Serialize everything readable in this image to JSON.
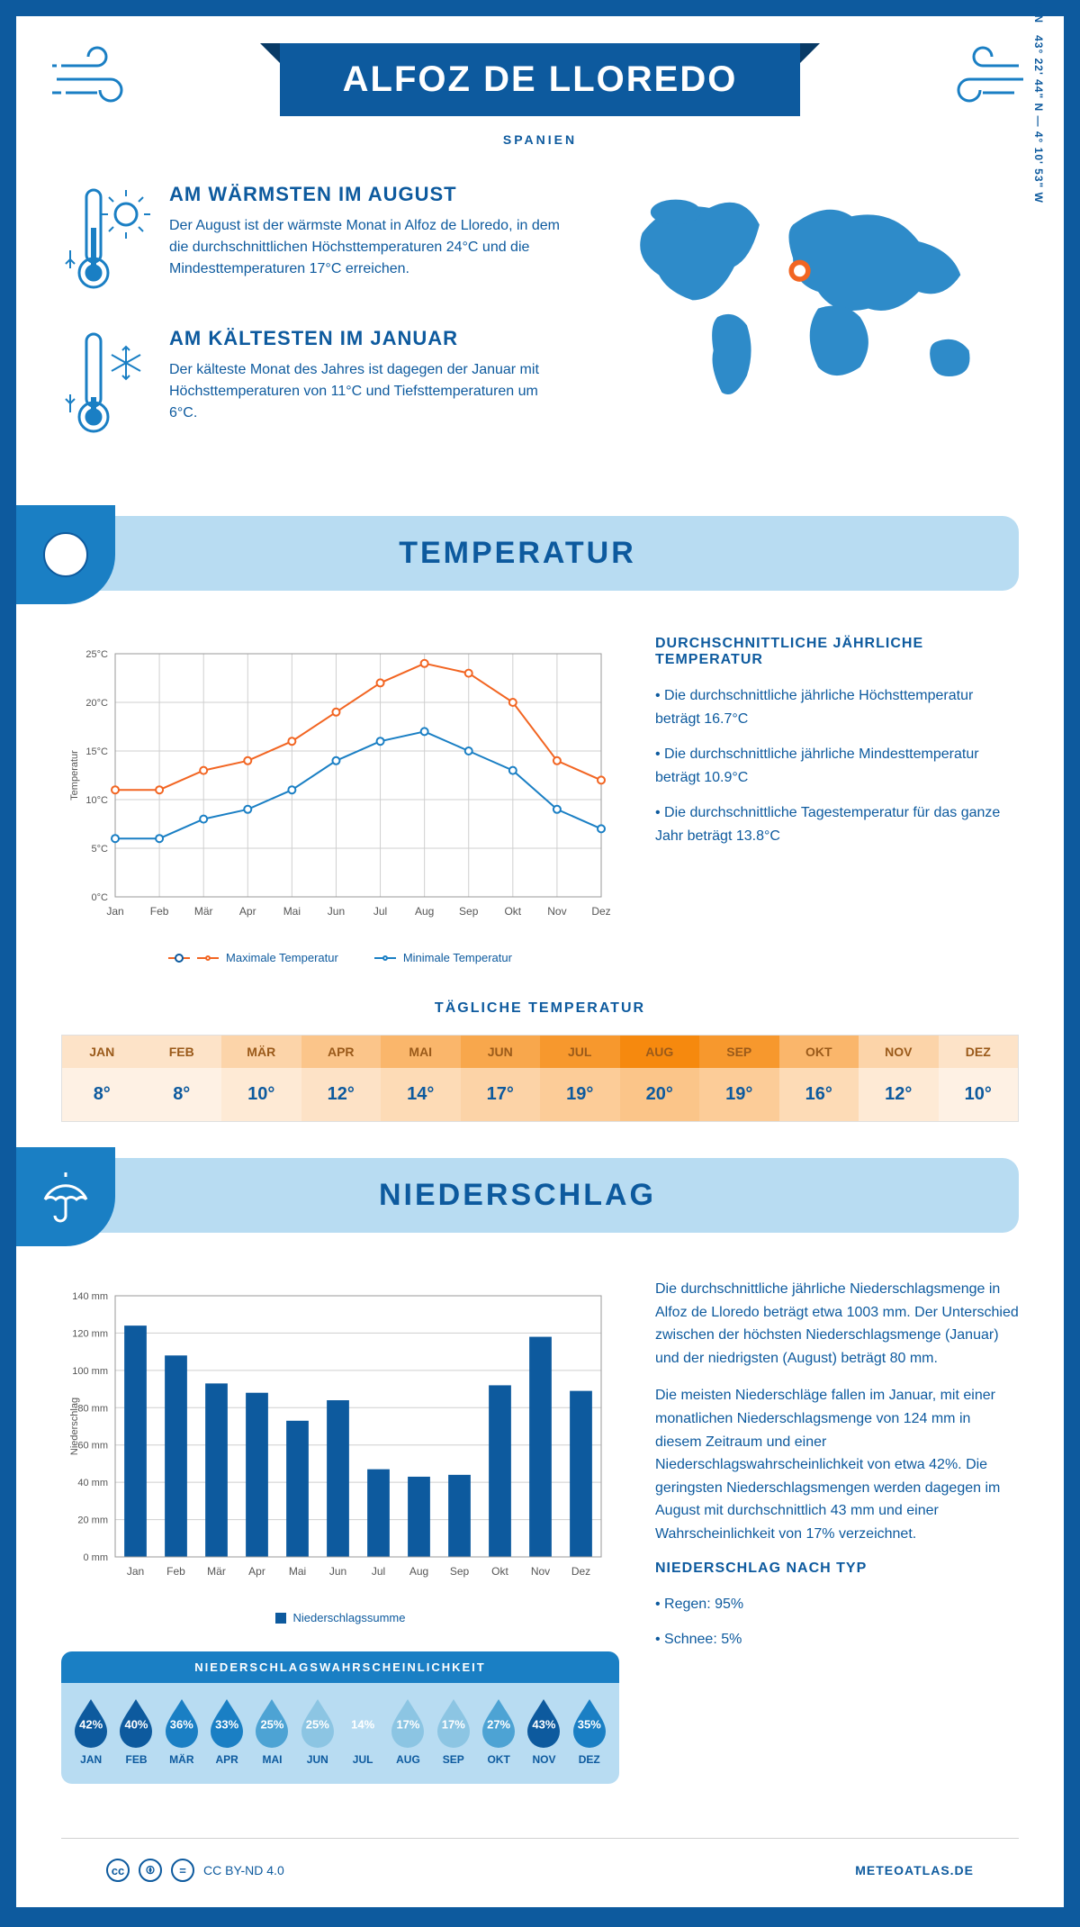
{
  "header": {
    "title": "ALFOZ DE LLOREDO",
    "country": "SPANIEN",
    "coords": "43° 22' 44\" N — 4° 10' 53\" W",
    "region": "KANTABRIEN"
  },
  "warmest": {
    "title": "AM WÄRMSTEN IM AUGUST",
    "text": "Der August ist der wärmste Monat in Alfoz de Lloredo, in dem die durchschnittlichen Höchsttemperaturen 24°C und die Mindesttemperaturen 17°C erreichen."
  },
  "coldest": {
    "title": "AM KÄLTESTEN IM JANUAR",
    "text": "Der kälteste Monat des Jahres ist dagegen der Januar mit Höchsttemperaturen von 11°C und Tiefsttemperaturen um 6°C."
  },
  "temperature": {
    "section_title": "TEMPERATUR",
    "avg_title": "DURCHSCHNITTLICHE JÄHRLICHE TEMPERATUR",
    "bullets": [
      "Die durchschnittliche jährliche Höchsttemperatur beträgt 16.7°C",
      "Die durchschnittliche jährliche Mindesttemperatur beträgt 10.9°C",
      "Die durchschnittliche Tagestemperatur für das ganze Jahr beträgt 13.8°C"
    ],
    "chart": {
      "type": "line",
      "months": [
        "Jan",
        "Feb",
        "Mär",
        "Apr",
        "Mai",
        "Jun",
        "Jul",
        "Aug",
        "Sep",
        "Okt",
        "Nov",
        "Dez"
      ],
      "max_series": [
        11,
        11,
        13,
        14,
        16,
        19,
        22,
        24,
        23,
        20,
        14,
        12
      ],
      "min_series": [
        6,
        6,
        8,
        9,
        11,
        14,
        16,
        17,
        15,
        13,
        9,
        7
      ],
      "max_color": "#f26522",
      "min_color": "#1a7fc4",
      "ylim": [
        0,
        25
      ],
      "ytick_step": 5,
      "ylabel": "Temperatur",
      "grid_color": "#cfcfcf",
      "background": "#ffffff",
      "line_width": 2,
      "marker_size": 4
    },
    "legend_max": "Maximale Temperatur",
    "legend_min": "Minimale Temperatur",
    "daily_title": "TÄGLICHE TEMPERATUR",
    "daily": {
      "months": [
        "JAN",
        "FEB",
        "MÄR",
        "APR",
        "MAI",
        "JUN",
        "JUL",
        "AUG",
        "SEP",
        "OKT",
        "NOV",
        "DEZ"
      ],
      "values": [
        "8°",
        "8°",
        "10°",
        "12°",
        "14°",
        "17°",
        "19°",
        "20°",
        "19°",
        "16°",
        "12°",
        "10°"
      ],
      "header_colors": [
        "#fde3c8",
        "#fde3c8",
        "#fcd4a9",
        "#fbc58a",
        "#fab66b",
        "#f8a74c",
        "#f7982d",
        "#f6890e",
        "#f7982d",
        "#fab66b",
        "#fcd4a9",
        "#fde3c8"
      ],
      "value_colors": [
        "#fef1e4",
        "#fef1e4",
        "#feead5",
        "#fde2c6",
        "#fddbb6",
        "#fcd3a7",
        "#fccc98",
        "#fbc589",
        "#fccc98",
        "#fddbb6",
        "#feead5",
        "#fef1e4"
      ]
    }
  },
  "precipitation": {
    "section_title": "NIEDERSCHLAG",
    "chart": {
      "type": "bar",
      "months": [
        "Jan",
        "Feb",
        "Mär",
        "Apr",
        "Mai",
        "Jun",
        "Jul",
        "Aug",
        "Sep",
        "Okt",
        "Nov",
        "Dez"
      ],
      "values": [
        124,
        108,
        93,
        88,
        73,
        84,
        47,
        43,
        44,
        92,
        118,
        89
      ],
      "bar_color": "#0d5a9e",
      "ylim": [
        0,
        140
      ],
      "ytick_step": 20,
      "ylabel": "Niederschlag",
      "grid_color": "#cfcfcf",
      "bar_width": 0.55
    },
    "legend": "Niederschlagssumme",
    "text1": "Die durchschnittliche jährliche Niederschlagsmenge in Alfoz de Lloredo beträgt etwa 1003 mm. Der Unterschied zwischen der höchsten Niederschlagsmenge (Januar) und der niedrigsten (August) beträgt 80 mm.",
    "text2": "Die meisten Niederschläge fallen im Januar, mit einer monatlichen Niederschlagsmenge von 124 mm in diesem Zeitraum und einer Niederschlagswahrscheinlichkeit von etwa 42%. Die geringsten Niederschlagsmengen werden dagegen im August mit durchschnittlich 43 mm und einer Wahrscheinlichkeit von 17% verzeichnet.",
    "type_title": "NIEDERSCHLAG NACH TYP",
    "type_bullets": [
      "Regen: 95%",
      "Schnee: 5%"
    ],
    "prob": {
      "title": "NIEDERSCHLAGSWAHRSCHEINLICHKEIT",
      "months": [
        "JAN",
        "FEB",
        "MÄR",
        "APR",
        "MAI",
        "JUN",
        "JUL",
        "AUG",
        "SEP",
        "OKT",
        "NOV",
        "DEZ"
      ],
      "values": [
        "42%",
        "40%",
        "36%",
        "33%",
        "25%",
        "25%",
        "14%",
        "17%",
        "17%",
        "27%",
        "43%",
        "35%"
      ],
      "drop_colors": [
        "#0d5a9e",
        "#0d5a9e",
        "#1a7fc4",
        "#1a7fc4",
        "#4da3d4",
        "#8cc5e3",
        "#b8dcf2",
        "#8cc5e3",
        "#8cc5e3",
        "#4da3d4",
        "#0d5a9e",
        "#1a7fc4"
      ]
    }
  },
  "footer": {
    "license": "CC BY-ND 4.0",
    "site": "METEOATLAS.DE"
  },
  "colors": {
    "primary": "#0d5a9e",
    "secondary": "#1a7fc4",
    "light": "#b8dcf2",
    "accent": "#f26522"
  }
}
